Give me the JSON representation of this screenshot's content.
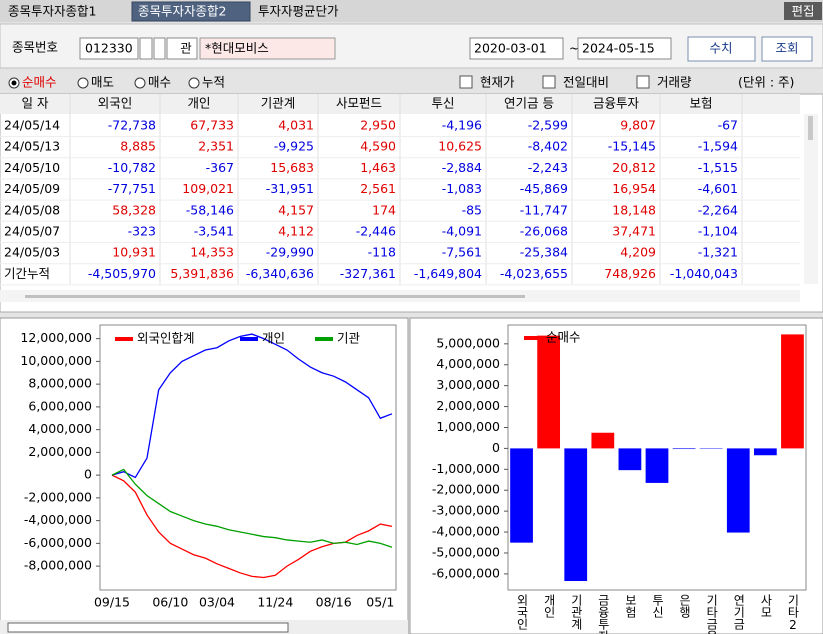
{
  "tabs": {
    "items": [
      "종목투자자종합1",
      "종목투자자종합2",
      "투자자평균단가"
    ],
    "active": 1,
    "edit": "편집"
  },
  "form": {
    "code_label": "종목번호",
    "code": "012330",
    "lookup": "관",
    "name": "*현대모비스",
    "date_from": "2020-03-01",
    "date_sep": "~",
    "date_to": "2024-05-15",
    "buttons": [
      "수치",
      "조회"
    ]
  },
  "options": {
    "radios": [
      "순매수",
      "매도",
      "매수",
      "누적"
    ],
    "selected": 0,
    "checks": [
      "현재가",
      "전일대비",
      "거래량"
    ],
    "unit": "(단위 : 주)"
  },
  "table": {
    "headers": [
      "일 자",
      "외국인",
      "개인",
      "기관계",
      "사모펀드",
      "투신",
      "연기금 등",
      "금융투자",
      "보험"
    ],
    "rows": [
      [
        "24/05/14",
        "-72,738",
        "67,733",
        "4,031",
        "2,950",
        "-4,196",
        "-2,599",
        "9,807",
        "-67"
      ],
      [
        "24/05/13",
        "8,885",
        "2,351",
        "-9,925",
        "4,590",
        "10,625",
        "-8,402",
        "-15,145",
        "-1,594"
      ],
      [
        "24/05/10",
        "-10,782",
        "-367",
        "15,683",
        "1,463",
        "-2,884",
        "-2,243",
        "20,812",
        "-1,515"
      ],
      [
        "24/05/09",
        "-77,751",
        "109,021",
        "-31,951",
        "2,561",
        "-1,083",
        "-45,869",
        "16,954",
        "-4,601"
      ],
      [
        "24/05/08",
        "58,328",
        "-58,146",
        "4,157",
        "174",
        "-85",
        "-11,747",
        "18,148",
        "-2,264"
      ],
      [
        "24/05/07",
        "-323",
        "-3,541",
        "4,112",
        "-2,446",
        "-4,091",
        "-26,068",
        "37,471",
        "-1,104"
      ],
      [
        "24/05/03",
        "10,931",
        "14,353",
        "-29,990",
        "-118",
        "-7,561",
        "-25,384",
        "4,209",
        "-1,321"
      ],
      [
        "기간누적",
        "-4,505,970",
        "5,391,836",
        "-6,340,636",
        "-327,361",
        "-1,649,804",
        "-4,023,655",
        "748,926",
        "-1,040,043"
      ]
    ]
  },
  "chart_data": [
    {
      "type": "line",
      "categories": [
        "09/15",
        null,
        null,
        null,
        null,
        "06/10",
        null,
        null,
        null,
        "03/04",
        null,
        null,
        null,
        null,
        "11/24",
        null,
        null,
        null,
        null,
        "08/16",
        null,
        null,
        null,
        "05/1",
        null
      ],
      "ylim": [
        -10100000,
        13200000
      ],
      "yticks": [
        {
          "value": 12000000,
          "label": "12,000,000"
        },
        {
          "value": 10000000,
          "label": "10,000,000"
        },
        {
          "value": 8000000,
          "label": "8,000,000"
        },
        {
          "value": 6000000,
          "label": "6,000,000"
        },
        {
          "value": 4000000,
          "label": "4,000,000"
        },
        {
          "value": 2000000,
          "label": "2,000,000"
        },
        0,
        {
          "value": -2000000,
          "label": "-2,000,000"
        },
        {
          "value": -4000000,
          "label": "-4,000,000"
        },
        {
          "value": -6000000,
          "label": "-6,000,000"
        },
        {
          "value": -8000000,
          "label": "-8,000,000"
        }
      ],
      "series": [
        {
          "name": "외국인합계",
          "color": "#ff0000",
          "values": [
            0,
            -500000,
            -1500000,
            -3500000,
            -5000000,
            -6000000,
            -6500000,
            -7000000,
            -7300000,
            -7800000,
            -8200000,
            -8600000,
            -8900000,
            -9000000,
            -8800000,
            -8000000,
            -7400000,
            -6700000,
            -6300000,
            -6000000,
            -5900000,
            -5300000,
            -4900000,
            -4300000,
            -4505970
          ]
        },
        {
          "name": "개인",
          "color": "#0000ff",
          "values": [
            0,
            300000,
            -200000,
            1500000,
            7500000,
            9000000,
            10000000,
            10500000,
            11000000,
            11200000,
            11800000,
            12200000,
            12400000,
            12000000,
            11500000,
            11000000,
            10200000,
            9500000,
            9000000,
            8700000,
            8200000,
            7500000,
            6800000,
            5000000,
            5391836
          ]
        },
        {
          "name": "기관",
          "color": "#00a000",
          "values": [
            0,
            500000,
            -800000,
            -1800000,
            -2500000,
            -3200000,
            -3600000,
            -4000000,
            -4300000,
            -4500000,
            -4800000,
            -5000000,
            -5200000,
            -5400000,
            -5500000,
            -5700000,
            -5800000,
            -5900000,
            -5700000,
            -6000000,
            -5900000,
            -6100000,
            -5800000,
            -6000000,
            -6340636
          ]
        }
      ]
    },
    {
      "type": "bar",
      "categories": [
        "외국인",
        "개인",
        "기관계",
        "금융투자",
        "보험",
        "투신",
        "은행",
        "기타금융",
        "연기금",
        "사모",
        "기타2"
      ],
      "values": [
        -4505970,
        5391836,
        -6340636,
        748926,
        -1040043,
        -1649804,
        -30000,
        -20000,
        -4023655,
        -327361,
        5450000
      ],
      "legend": "순매수",
      "positive_color": "#ff0000",
      "negative_color": "#0000ff",
      "ylim": [
        -6770000,
        5900000
      ],
      "yticks": [
        {
          "value": 5000000,
          "label": "5,000,000"
        },
        {
          "value": 4000000,
          "label": "4,000,000"
        },
        {
          "value": 3000000,
          "label": "3,000,000"
        },
        {
          "value": 2000000,
          "label": "2,000,000"
        },
        {
          "value": 1000000,
          "label": "1,000,000"
        },
        0,
        {
          "value": -1000000,
          "label": "-1,000,000"
        },
        {
          "value": -2000000,
          "label": "-2,000,000"
        },
        {
          "value": -3000000,
          "label": "-3,000,000"
        },
        {
          "value": -4000000,
          "label": "-4,000,000"
        },
        {
          "value": -5000000,
          "label": "-5,000,000"
        },
        {
          "value": -6000000,
          "label": "-6,000,000"
        }
      ]
    }
  ]
}
